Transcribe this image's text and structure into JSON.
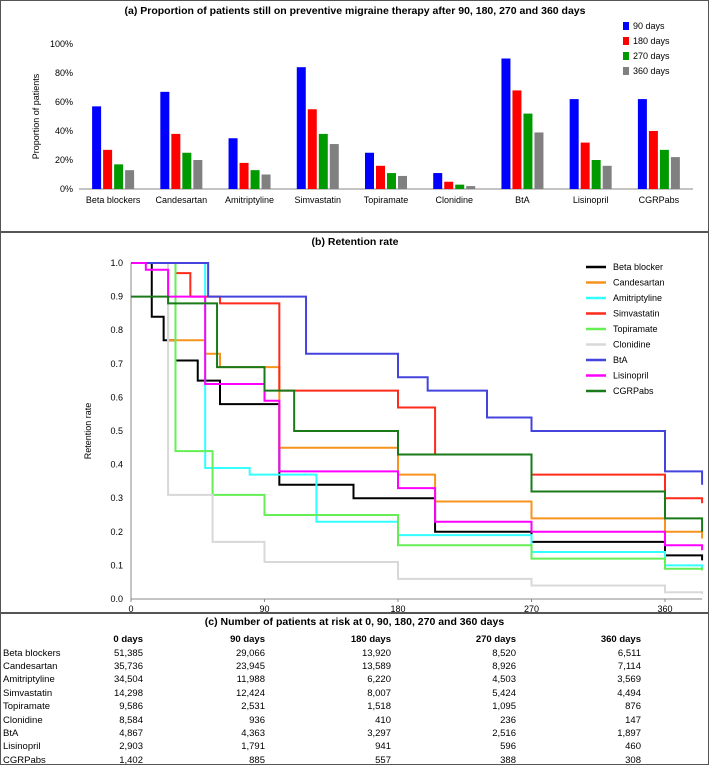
{
  "chart_data": [
    {
      "type": "bar",
      "title": "(a) Proportion of patients still on preventive migraine therapy after 90, 180, 270 and 360 days",
      "xlabel": "",
      "ylabel": "Proportion of patients",
      "ylim": [
        0,
        100
      ],
      "yticks": [
        "0%",
        "20%",
        "40%",
        "60%",
        "80%",
        "100%"
      ],
      "legend_position": "top-right",
      "categories": [
        "Beta blockers",
        "Candesartan",
        "Amitriptyline",
        "Simvastatin",
        "Topiramate",
        "Clonidine",
        "BtA",
        "Lisinopril",
        "CGRPabs"
      ],
      "series": [
        {
          "name": "90 days",
          "color": "#0000ff",
          "values": [
            57,
            67,
            35,
            84,
            25,
            11,
            90,
            62,
            62
          ]
        },
        {
          "name": "180 days",
          "color": "#ff0000",
          "values": [
            27,
            38,
            18,
            55,
            16,
            5,
            68,
            32,
            40
          ]
        },
        {
          "name": "270 days",
          "color": "#009900",
          "values": [
            17,
            25,
            13,
            38,
            11,
            3,
            52,
            20,
            27
          ]
        },
        {
          "name": "360 days",
          "color": "#808080",
          "values": [
            13,
            20,
            10,
            31,
            9,
            2,
            39,
            16,
            22
          ]
        }
      ]
    },
    {
      "type": "line",
      "title": "(b) Retention rate",
      "xlabel": "Days since first prescription",
      "ylabel": "Retention rate",
      "xlim": [
        0,
        385
      ],
      "ylim": [
        0,
        1
      ],
      "xticks": [
        "0",
        "90",
        "180",
        "270",
        "360"
      ],
      "yticks": [
        "0.0",
        "0.1",
        "0.2",
        "0.3",
        "0.4",
        "0.5",
        "0.6",
        "0.7",
        "0.8",
        "0.9",
        "1.0"
      ],
      "legend_position": "top-right",
      "series": [
        {
          "name": "Beta blocker",
          "color": "#000000",
          "x": [
            0,
            14,
            22,
            30,
            45,
            60,
            100,
            150,
            205,
            270,
            360,
            385
          ],
          "y": [
            1.0,
            0.84,
            0.77,
            0.71,
            0.65,
            0.58,
            0.34,
            0.3,
            0.2,
            0.17,
            0.13,
            0.115
          ]
        },
        {
          "name": "Candesartan",
          "color": "#f7941d",
          "x": [
            0,
            25,
            50,
            60,
            100,
            180,
            205,
            270,
            360,
            385
          ],
          "y": [
            1.0,
            0.77,
            0.73,
            0.69,
            0.45,
            0.37,
            0.29,
            0.24,
            0.2,
            0.18
          ]
        },
        {
          "name": "Amitriptyline",
          "color": "#33ffff",
          "x": [
            0,
            50,
            80,
            125,
            180,
            270,
            360,
            385
          ],
          "y": [
            1.0,
            0.39,
            0.37,
            0.23,
            0.19,
            0.14,
            0.1,
            0.09
          ]
        },
        {
          "name": "Simvastatin",
          "color": "#ff2a1a",
          "x": [
            0,
            30,
            40,
            60,
            100,
            180,
            205,
            270,
            360,
            385
          ],
          "y": [
            1.0,
            0.97,
            0.9,
            0.88,
            0.62,
            0.57,
            0.43,
            0.37,
            0.3,
            0.285
          ]
        },
        {
          "name": "Topiramate",
          "color": "#66ee55",
          "x": [
            0,
            30,
            55,
            90,
            180,
            270,
            360,
            385
          ],
          "y": [
            1.0,
            0.44,
            0.31,
            0.25,
            0.16,
            0.12,
            0.09,
            0.085
          ]
        },
        {
          "name": "Clonidine",
          "color": "#d8d8d8",
          "x": [
            0,
            25,
            55,
            90,
            180,
            270,
            360,
            385
          ],
          "y": [
            1.0,
            0.31,
            0.17,
            0.11,
            0.06,
            0.04,
            0.02,
            0.015
          ]
        },
        {
          "name": "BtA",
          "color": "#4444dd",
          "x": [
            0,
            52,
            118,
            180,
            200,
            240,
            270,
            360,
            385
          ],
          "y": [
            1.0,
            0.9,
            0.73,
            0.66,
            0.62,
            0.54,
            0.5,
            0.38,
            0.34
          ]
        },
        {
          "name": "Lisinopril",
          "color": "#ff00ff",
          "x": [
            0,
            10,
            25,
            50,
            90,
            100,
            180,
            205,
            270,
            360,
            385
          ],
          "y": [
            1.0,
            0.98,
            0.9,
            0.64,
            0.59,
            0.38,
            0.33,
            0.23,
            0.2,
            0.16,
            0.145
          ]
        },
        {
          "name": "CGRPabs",
          "color": "#1a7a1a",
          "x": [
            0,
            25,
            58,
            90,
            110,
            180,
            270,
            360,
            385
          ],
          "y": [
            0.9,
            0.88,
            0.69,
            0.62,
            0.5,
            0.43,
            0.32,
            0.24,
            0.2
          ]
        }
      ]
    },
    {
      "type": "table",
      "title": "(c) Number of patients at risk at 0, 90, 180, 270 and 360 days",
      "columns": [
        "",
        "0 days",
        "90 days",
        "180 days",
        "270 days",
        "360 days"
      ],
      "rows": [
        [
          "Beta blockers",
          "51,385",
          "29,066",
          "13,920",
          "8,520",
          "6,511"
        ],
        [
          "Candesartan",
          "35,736",
          "23,945",
          "13,589",
          "8,926",
          "7,114"
        ],
        [
          "Amitriptyline",
          "34,504",
          "11,988",
          "6,220",
          "4,503",
          "3,569"
        ],
        [
          "Simvastatin",
          "14,298",
          "12,424",
          "8,007",
          "5,424",
          "4,494"
        ],
        [
          "Topiramate",
          "9,586",
          "2,531",
          "1,518",
          "1,095",
          "876"
        ],
        [
          "Clonidine",
          "8,584",
          "936",
          "410",
          "236",
          "147"
        ],
        [
          "BtA",
          "4,867",
          "4,363",
          "3,297",
          "2,516",
          "1,897"
        ],
        [
          "Lisinopril",
          "2,903",
          "1,791",
          "941",
          "596",
          "460"
        ],
        [
          "CGRPabs",
          "1,402",
          "885",
          "557",
          "388",
          "308"
        ]
      ]
    }
  ]
}
